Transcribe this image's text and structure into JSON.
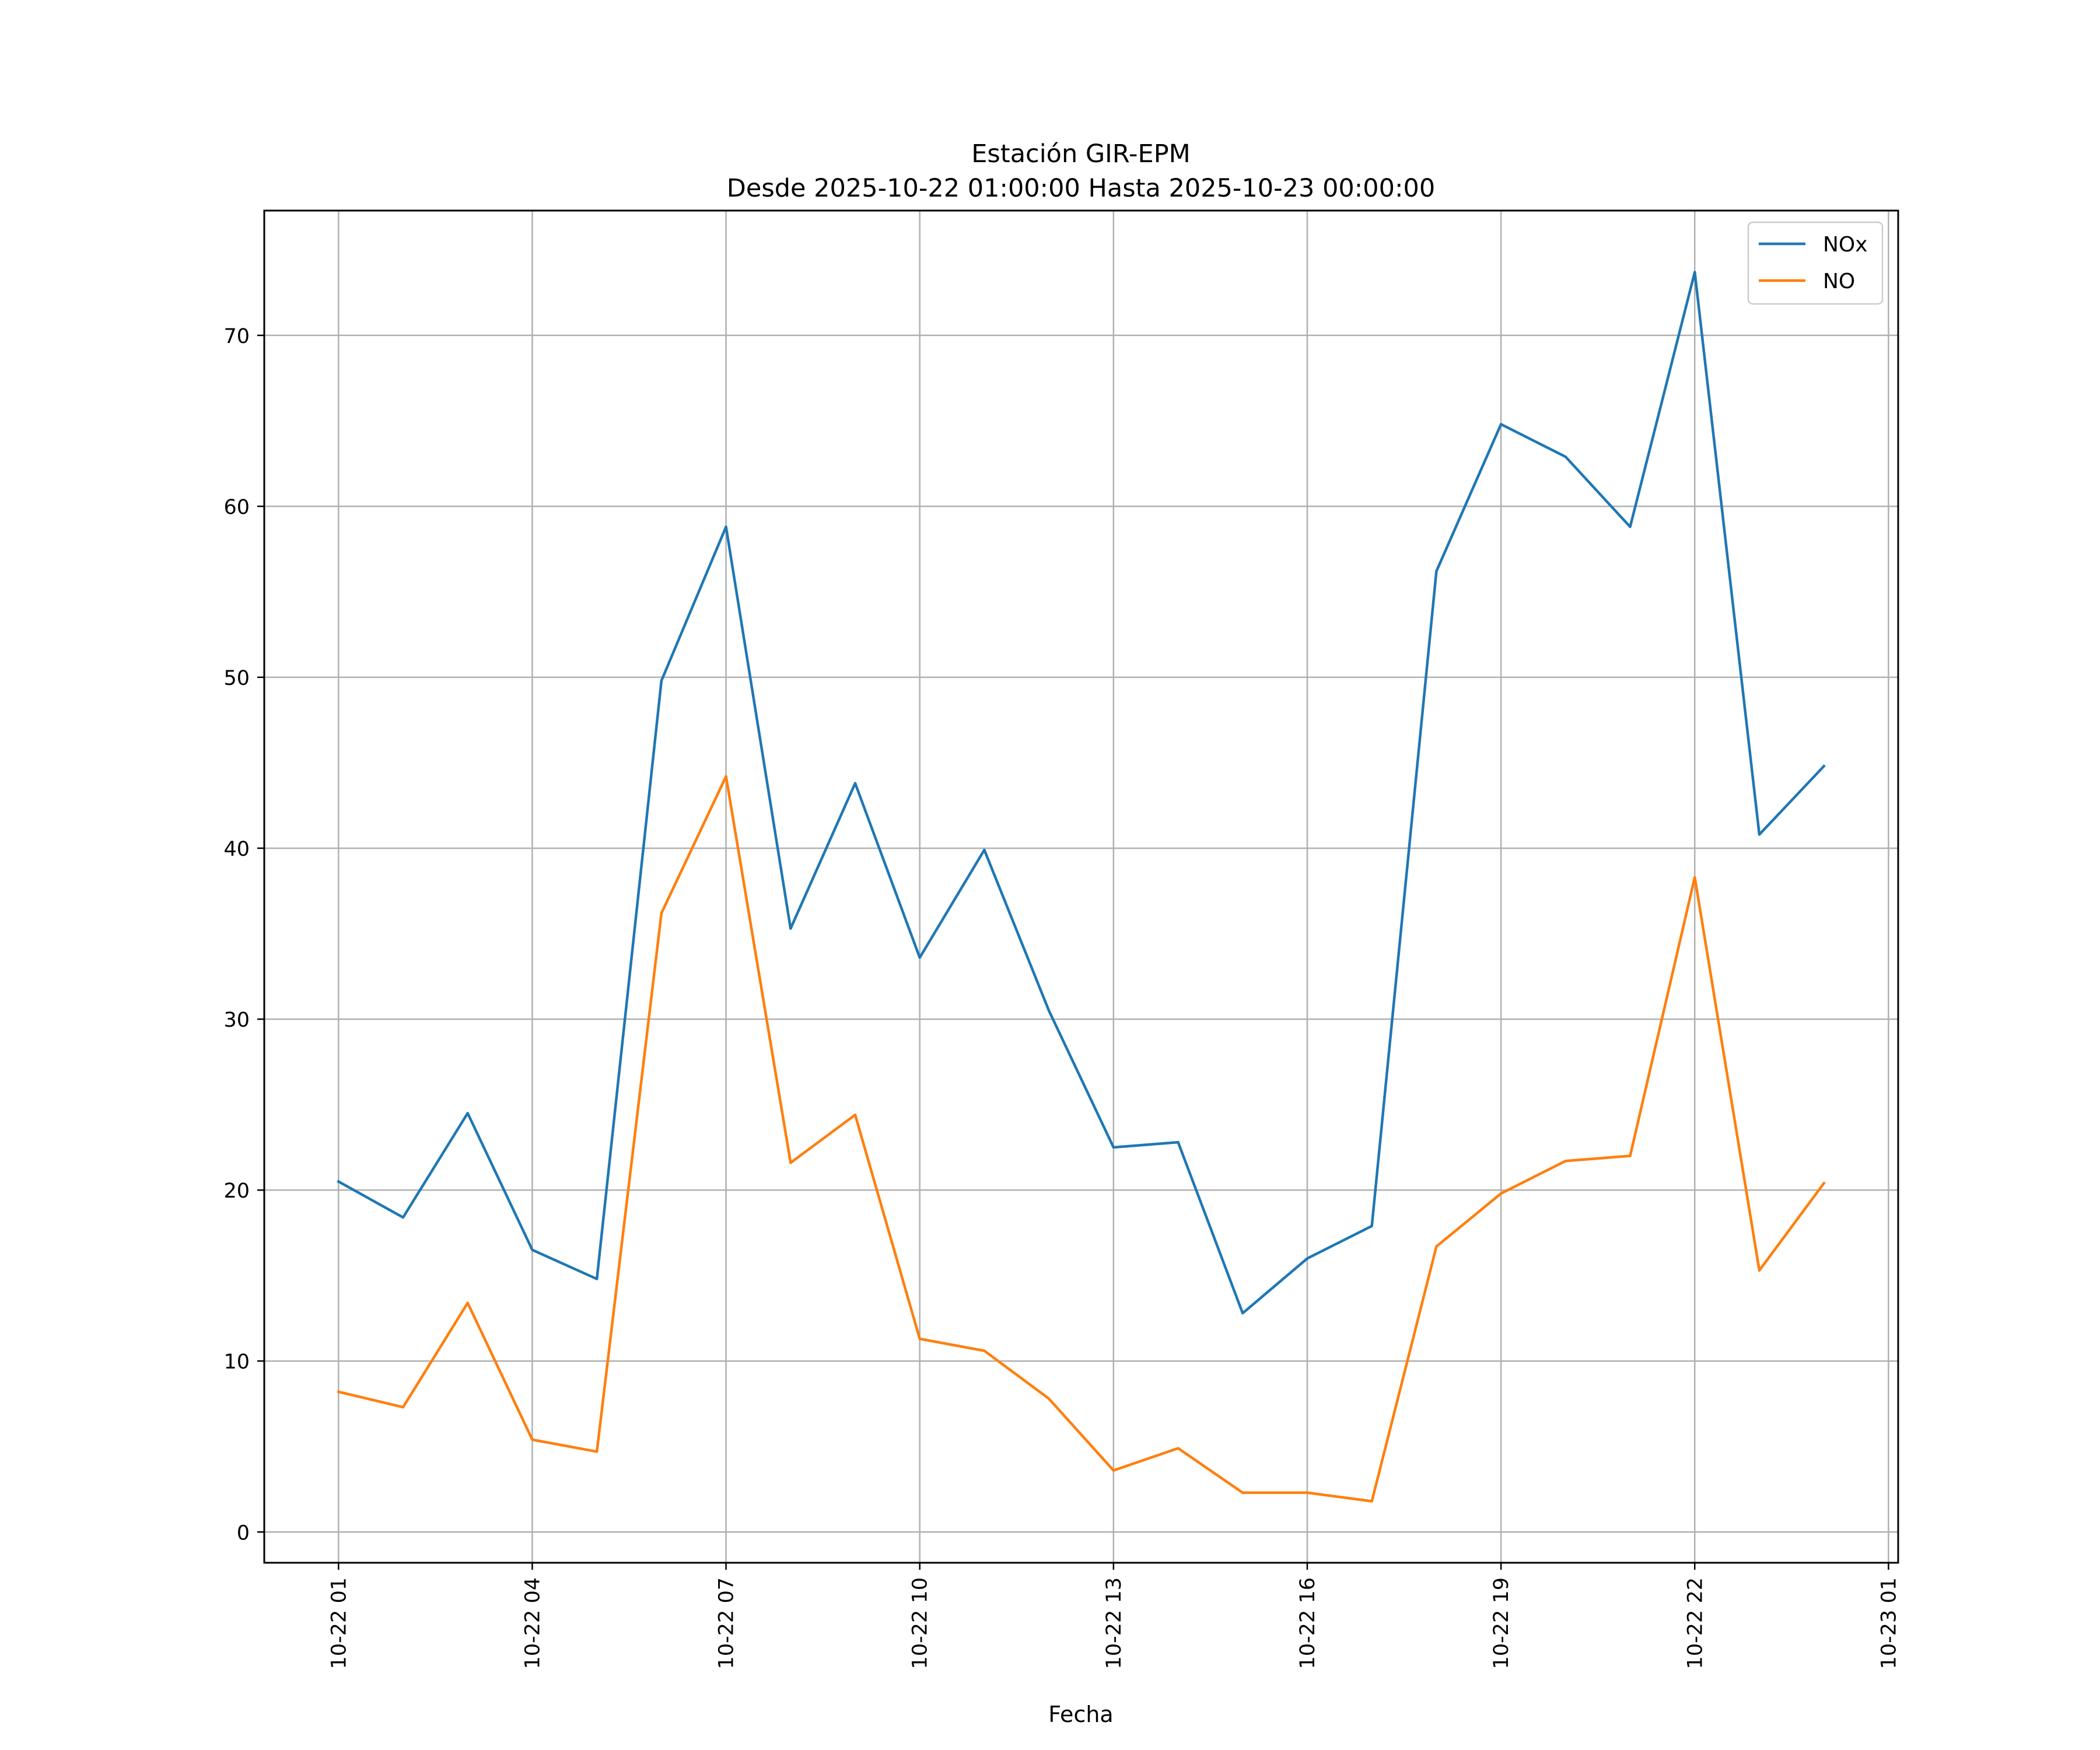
{
  "chart_data": {
    "type": "line",
    "title": "Estación GIR-EPM",
    "subtitle": "Desde 2025-10-22 01:00:00 Hasta 2025-10-23 00:00:00",
    "xlabel": "Fecha",
    "ylabel": "",
    "x": [
      "2025-10-22 01:00",
      "2025-10-22 02:00",
      "2025-10-22 03:00",
      "2025-10-22 04:00",
      "2025-10-22 05:00",
      "2025-10-22 06:00",
      "2025-10-22 07:00",
      "2025-10-22 08:00",
      "2025-10-22 09:00",
      "2025-10-22 10:00",
      "2025-10-22 11:00",
      "2025-10-22 12:00",
      "2025-10-22 13:00",
      "2025-10-22 14:00",
      "2025-10-22 15:00",
      "2025-10-22 16:00",
      "2025-10-22 17:00",
      "2025-10-22 18:00",
      "2025-10-22 19:00",
      "2025-10-22 20:00",
      "2025-10-22 21:00",
      "2025-10-22 22:00",
      "2025-10-22 23:00",
      "2025-10-23 00:00"
    ],
    "xticks": [
      {
        "x": "2025-10-22 01:00",
        "label": "10-22 01"
      },
      {
        "x": "2025-10-22 04:00",
        "label": "10-22 04"
      },
      {
        "x": "2025-10-22 07:00",
        "label": "10-22 07"
      },
      {
        "x": "2025-10-22 10:00",
        "label": "10-22 10"
      },
      {
        "x": "2025-10-22 13:00",
        "label": "10-22 13"
      },
      {
        "x": "2025-10-22 16:00",
        "label": "10-22 16"
      },
      {
        "x": "2025-10-22 19:00",
        "label": "10-22 19"
      },
      {
        "x": "2025-10-22 22:00",
        "label": "10-22 22"
      },
      {
        "x": "2025-10-23 01:00",
        "label": "10-23 01"
      }
    ],
    "xlim": [
      "2025-10-21 23:51",
      "2025-10-23 01:09"
    ],
    "ylim": [
      -1.8,
      77.3
    ],
    "yticks": [
      0,
      10,
      20,
      30,
      40,
      50,
      60,
      70
    ],
    "grid": true,
    "legend_position": "top-right",
    "series": [
      {
        "name": "NOx",
        "color": "#1f77b4",
        "values": [
          20.5,
          18.4,
          24.5,
          16.5,
          14.8,
          49.8,
          58.8,
          35.3,
          43.8,
          33.6,
          39.9,
          30.5,
          22.5,
          22.8,
          12.8,
          16.0,
          17.9,
          56.2,
          64.8,
          62.9,
          58.8,
          73.7,
          40.8,
          44.8
        ]
      },
      {
        "name": "NO",
        "color": "#ff7f0e",
        "values": [
          8.2,
          7.3,
          13.4,
          5.4,
          4.7,
          36.2,
          44.2,
          21.6,
          24.4,
          11.3,
          10.6,
          7.8,
          3.6,
          4.9,
          2.3,
          2.3,
          1.8,
          16.7,
          19.8,
          21.7,
          22.0,
          38.3,
          15.3,
          20.4
        ]
      }
    ]
  }
}
